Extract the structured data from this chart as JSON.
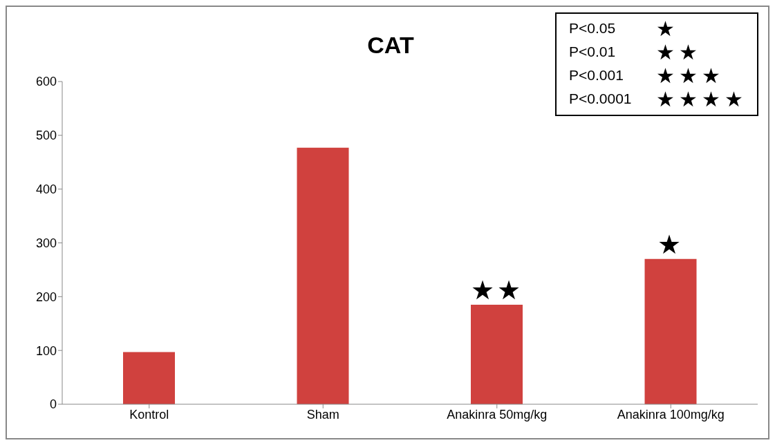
{
  "chart_data": {
    "type": "bar",
    "title": "CAT",
    "categories": [
      "Kontrol",
      "Sham",
      "Anakinra 50mg/kg",
      "Anakinra 100mg/kg"
    ],
    "values": [
      97,
      477,
      185,
      270
    ],
    "color": "#d0413e",
    "ylim": [
      0,
      600
    ],
    "yticks": [
      0,
      100,
      200,
      300,
      400,
      500,
      600
    ],
    "annotations": [
      {
        "text": "★★",
        "x": "Anakinra 50mg/kg",
        "y": 185
      },
      {
        "text": "★",
        "x": "Anakinra 100mg/kg",
        "y": 270
      },
      "P<0.05 ★",
      "P<0.01 ★★",
      "P<0.001 ★★★",
      "P<0.0001 ★★★★"
    ]
  }
}
